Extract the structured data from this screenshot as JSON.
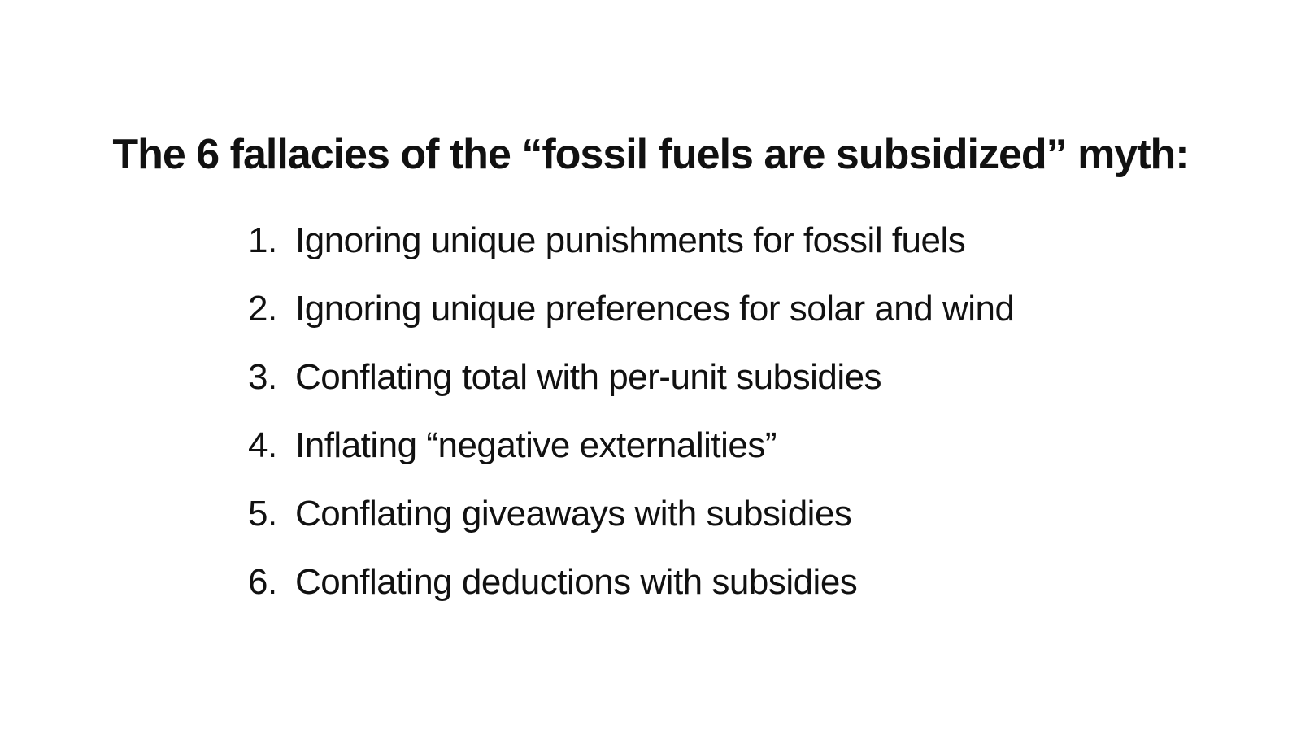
{
  "slide": {
    "title": "The 6 fallacies of the “fossil fuels are subsidized” myth:",
    "fallacies": [
      {
        "number": "1.",
        "text": "Ignoring unique punishments for fossil fuels"
      },
      {
        "number": "2.",
        "text": "Ignoring unique preferences for solar and wind"
      },
      {
        "number": "3.",
        "text": "Conflating total with per-unit subsidies"
      },
      {
        "number": "4.",
        "text": "Inflating “negative externalities”"
      },
      {
        "number": "5.",
        "text": "Conflating giveaways with subsidies"
      },
      {
        "number": "6.",
        "text": "Conflating deductions with subsidies"
      }
    ]
  }
}
